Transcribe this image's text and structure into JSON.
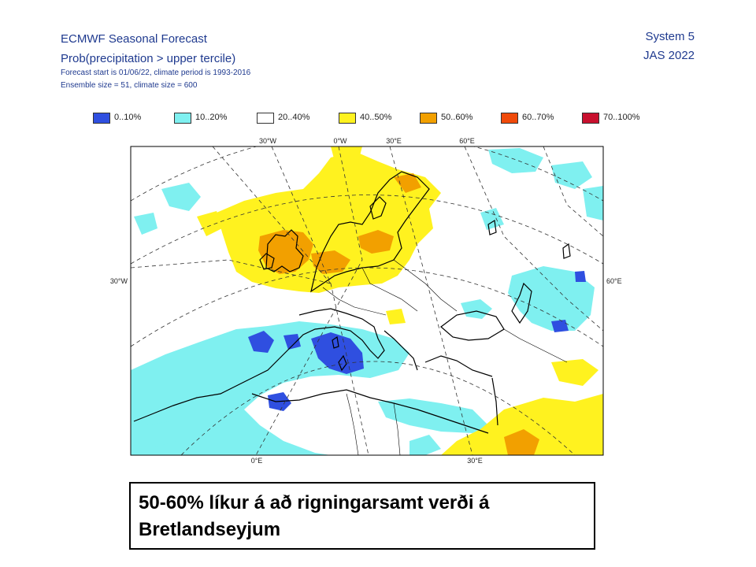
{
  "header": {
    "title": "ECMWF Seasonal Forecast",
    "product": "Prob(precipitation > upper tercile)",
    "forecast_info": "Forecast start is 01/06/22, climate period is 1993-2016",
    "ensemble_info": "Ensemble size = 51, climate size = 600",
    "system": "System 5",
    "season": "JAS 2022"
  },
  "legend": [
    {
      "label": "0..10%",
      "color": "#2f4fe0"
    },
    {
      "label": "10..20%",
      "color": "#7ff0f0"
    },
    {
      "label": "20..40%",
      "color": "#ffffff"
    },
    {
      "label": "40..50%",
      "color": "#fff21f"
    },
    {
      "label": "50..60%",
      "color": "#f2a000"
    },
    {
      "label": "60..70%",
      "color": "#f04a0a"
    },
    {
      "label": "70..100%",
      "color": "#c8102e"
    }
  ],
  "map": {
    "top_labels": [
      "30°W",
      "0°W",
      "30°E",
      "60°E"
    ],
    "bottom_labels": [
      "0°E",
      "30°E"
    ],
    "left_label": "30°W",
    "right_label": "60°E"
  },
  "caption": "50-60% líkur á að rigningarsamt verði á Bretlandseyjum"
}
